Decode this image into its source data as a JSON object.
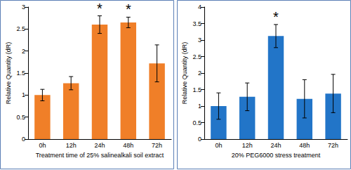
{
  "chart_data": [
    {
      "type": "bar",
      "categories": [
        "0h",
        "12h",
        "24h",
        "48h",
        "72h"
      ],
      "values": [
        1.0,
        1.27,
        2.6,
        2.65,
        1.72
      ],
      "errors": [
        0.13,
        0.15,
        0.2,
        0.12,
        0.42
      ],
      "color": "#f07f28",
      "x_label": "Treatment time of 25% salinealkali soil extract",
      "y_label": "Relative Quantity (dR)",
      "ylim": [
        0,
        3
      ],
      "yticks": [
        0,
        0.5,
        1,
        1.5,
        2,
        2.5,
        3
      ],
      "annotations": [
        {
          "category": "24h",
          "text": "*"
        },
        {
          "category": "48h",
          "text": "*"
        }
      ],
      "grid": false
    },
    {
      "type": "bar",
      "categories": [
        "0h",
        "12h",
        "24h",
        "48h",
        "72h"
      ],
      "values": [
        1.0,
        1.28,
        3.12,
        1.22,
        1.38
      ],
      "errors": [
        0.4,
        0.42,
        0.35,
        0.58,
        0.58
      ],
      "color": "#2275c8",
      "x_label": "20% PEG6000 stress treatment",
      "y_label": "Relative Quantity (dR)",
      "ylim": [
        0,
        4
      ],
      "yticks": [
        0,
        0.5,
        1,
        1.5,
        2,
        2.5,
        3,
        3.5,
        4
      ],
      "annotations": [
        {
          "category": "24h",
          "text": "*"
        }
      ],
      "grid": false
    }
  ]
}
